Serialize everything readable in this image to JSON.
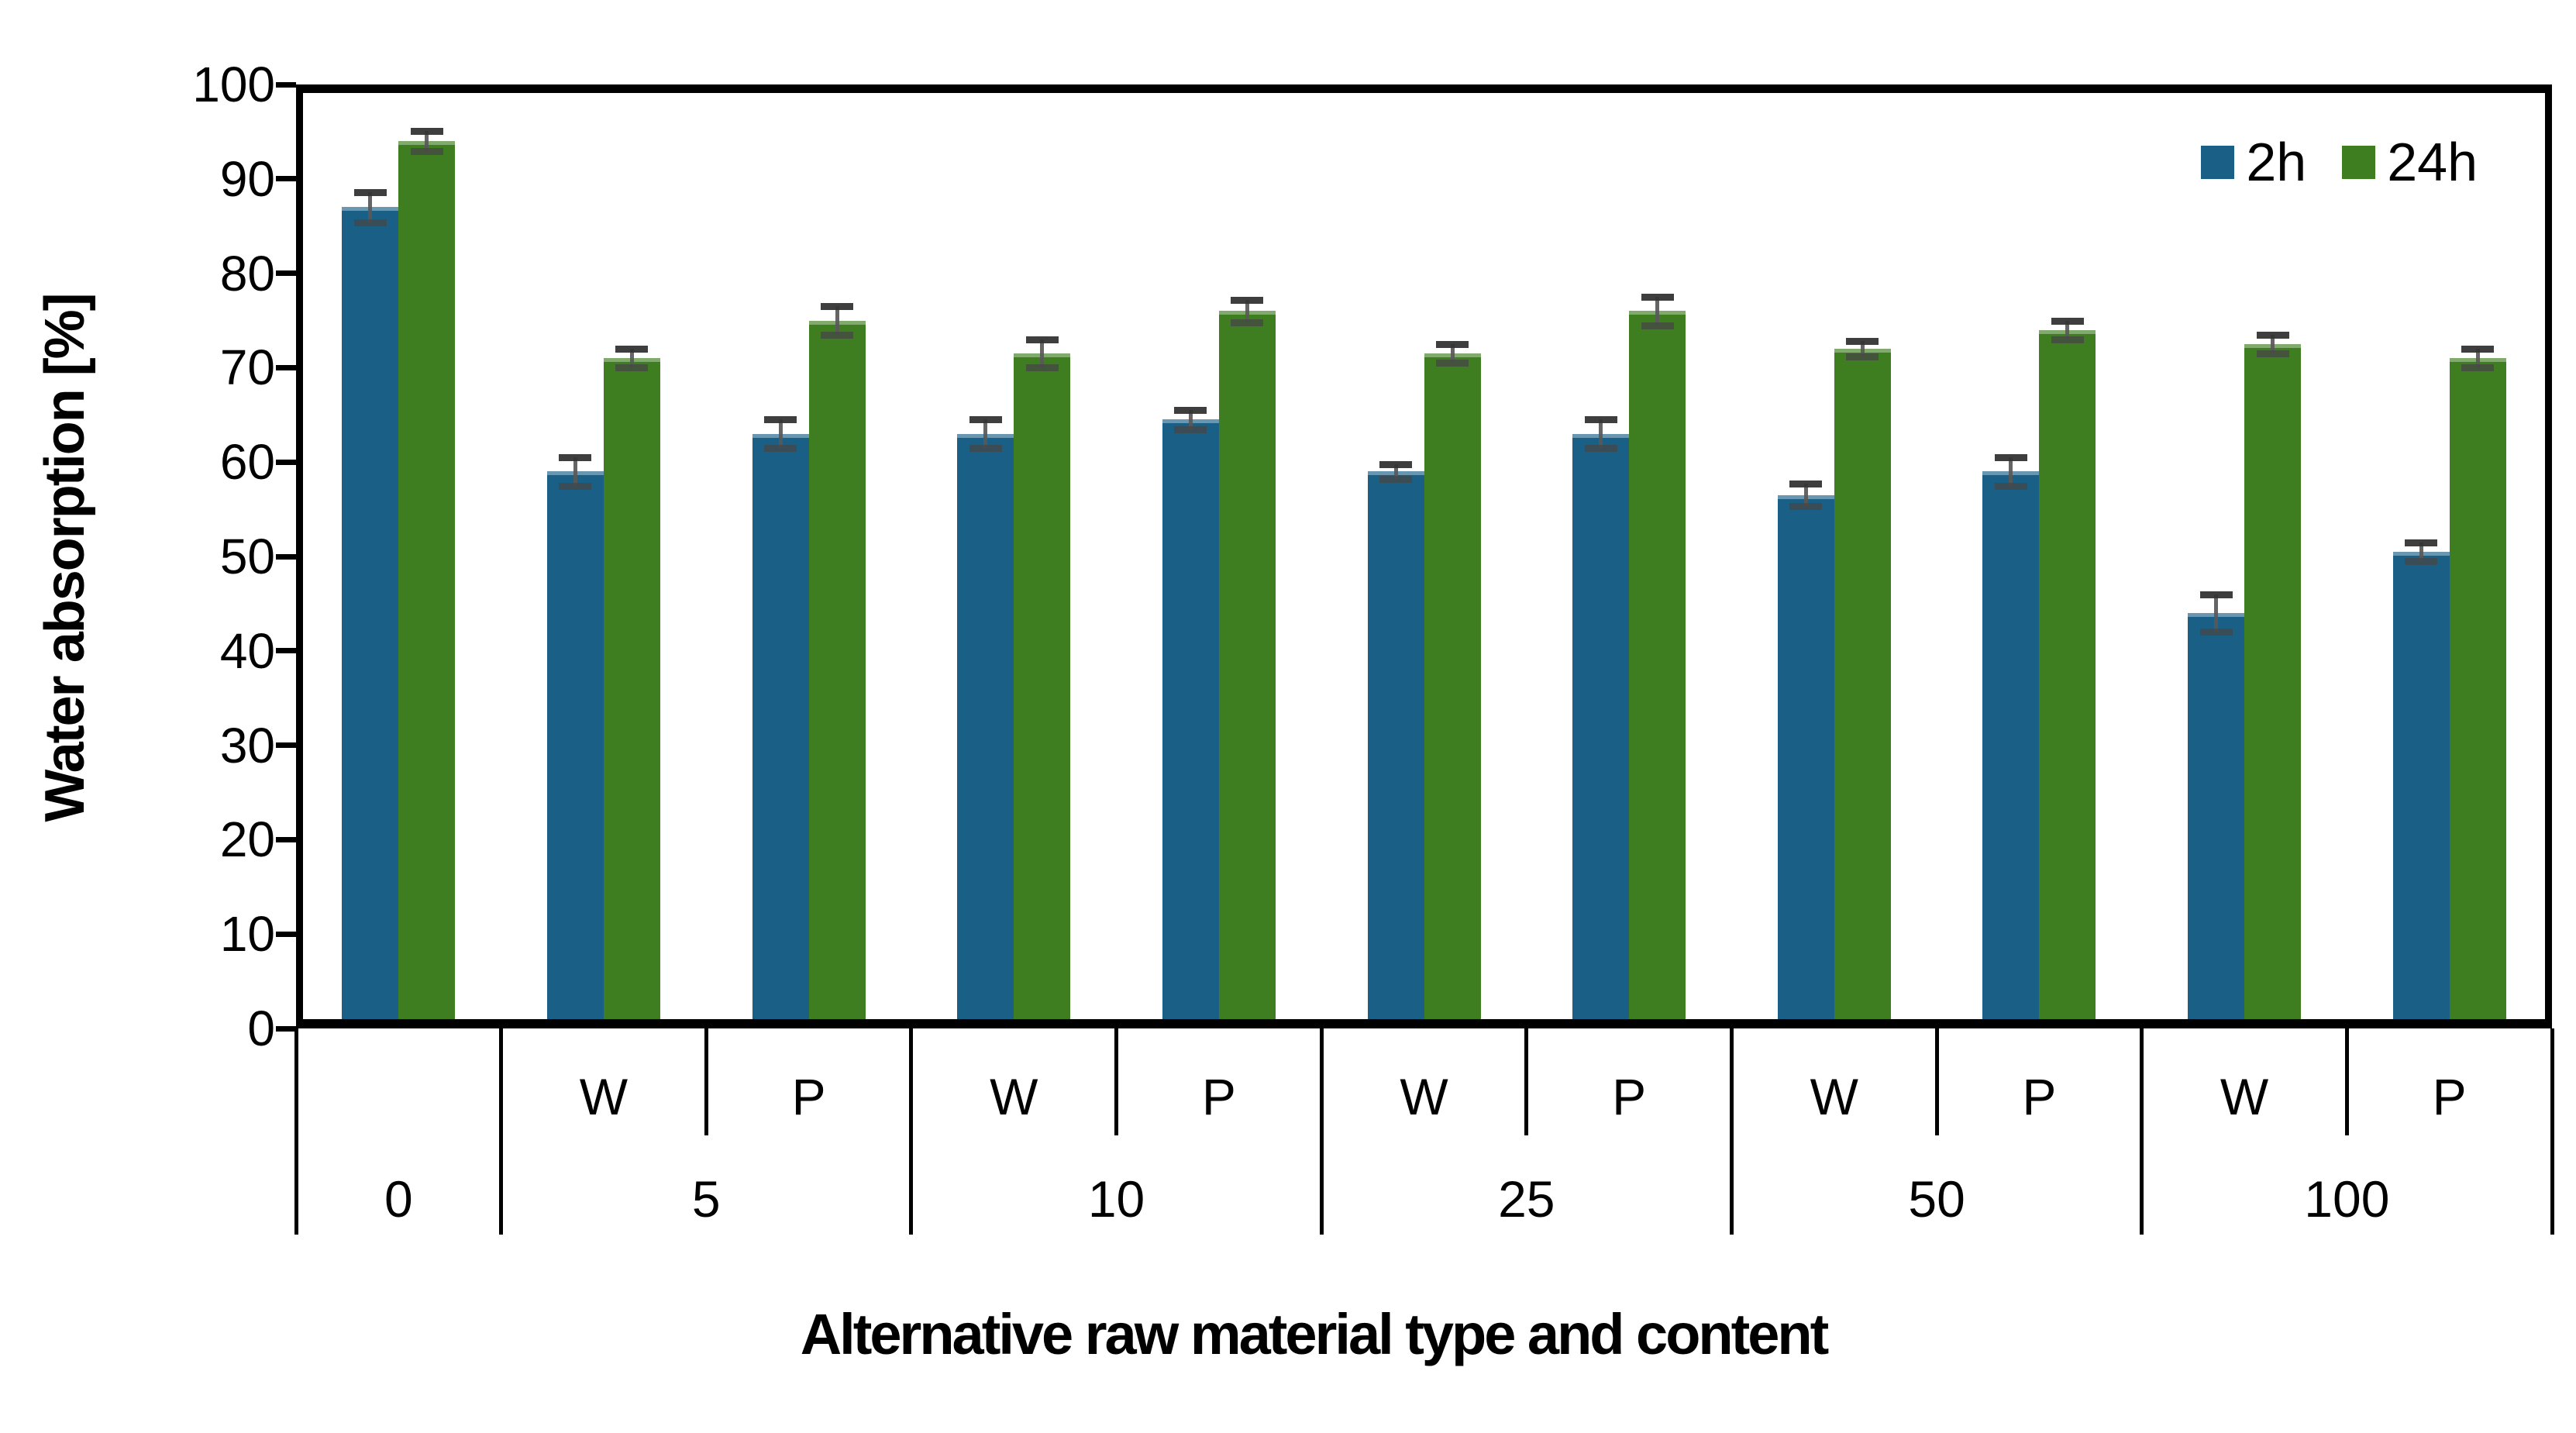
{
  "chart_data": {
    "type": "bar",
    "title": "",
    "xlabel": "Alternative raw material type and content",
    "ylabel": "Water absorption [%]",
    "ylim": [
      0,
      100
    ],
    "ytick_step": 10,
    "grid": false,
    "legend_position": "top-right-inside",
    "error_bars": true,
    "categories": [
      {
        "group": "0",
        "sub": ""
      },
      {
        "group": "5",
        "sub": "W"
      },
      {
        "group": "5",
        "sub": "P"
      },
      {
        "group": "10",
        "sub": "W"
      },
      {
        "group": "10",
        "sub": "P"
      },
      {
        "group": "25",
        "sub": "W"
      },
      {
        "group": "25",
        "sub": "P"
      },
      {
        "group": "50",
        "sub": "W"
      },
      {
        "group": "50",
        "sub": "P"
      },
      {
        "group": "100",
        "sub": "W"
      },
      {
        "group": "100",
        "sub": "P"
      }
    ],
    "series": [
      {
        "name": "2h",
        "color": "#1a5f86",
        "values": [
          87,
          59,
          63,
          63,
          64.5,
          59,
          63,
          56.5,
          59,
          44,
          50.5
        ],
        "errors": [
          1.6,
          1.5,
          1.5,
          1.5,
          1.0,
          0.8,
          1.5,
          1.2,
          1.5,
          2.0,
          1.0
        ]
      },
      {
        "name": "24h",
        "color": "#3e7d20",
        "values": [
          94,
          71,
          75,
          71.5,
          76,
          71.5,
          76,
          72,
          74,
          72.5,
          71
        ],
        "errors": [
          1.1,
          1.0,
          1.5,
          1.5,
          1.2,
          1.0,
          1.5,
          0.8,
          1.0,
          1.0,
          1.0
        ]
      }
    ],
    "error_bar_color": "#3a3a3a",
    "axis_color": "#000000",
    "y_tick_labels": [
      "0",
      "10",
      "20",
      "30",
      "40",
      "50",
      "60",
      "70",
      "80",
      "90",
      "100"
    ]
  }
}
